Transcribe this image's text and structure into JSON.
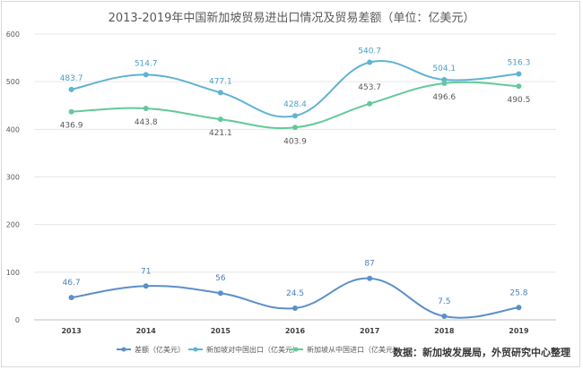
{
  "chart_data": {
    "type": "line",
    "title": "2013-2019年中国新加坡贸易进出口情况及贸易差额（单位：亿美元）",
    "categories": [
      "2013",
      "2014",
      "2015",
      "2016",
      "2017",
      "2018",
      "2019"
    ],
    "ylim": [
      0,
      600
    ],
    "yticks": [
      "0",
      "100",
      "200",
      "300",
      "400",
      "500",
      "600"
    ],
    "grid": true,
    "legend_position": "bottom",
    "series": [
      {
        "name": "差额（亿美元）",
        "color": "#5b8fc9",
        "values": [
          46.7,
          71,
          56,
          24.5,
          87,
          7.5,
          25.8
        ],
        "labels": [
          "46.7",
          "71",
          "56",
          "24.5",
          "87",
          "7.5",
          "25.8"
        ]
      },
      {
        "name": "新加坡对中国出口（亿美元）",
        "color": "#5fb3d4",
        "values": [
          483.7,
          514.7,
          477.1,
          428.4,
          540.7,
          504.1,
          516.3
        ],
        "labels": [
          "483.7",
          "514.7",
          "477.1",
          "428.4",
          "540.7",
          "504.1",
          "516.3"
        ]
      },
      {
        "name": "新加坡从中国进口（亿美元）",
        "color": "#63c99a",
        "values": [
          436.9,
          443.8,
          421.1,
          403.9,
          453.7,
          496.6,
          490.5
        ],
        "labels": [
          "436.9",
          "443.8",
          "421.1",
          "403.9",
          "453.7",
          "496.6",
          "490.5"
        ]
      }
    ]
  },
  "source": "数据：新加坡发展局，外贸研究中心整理"
}
